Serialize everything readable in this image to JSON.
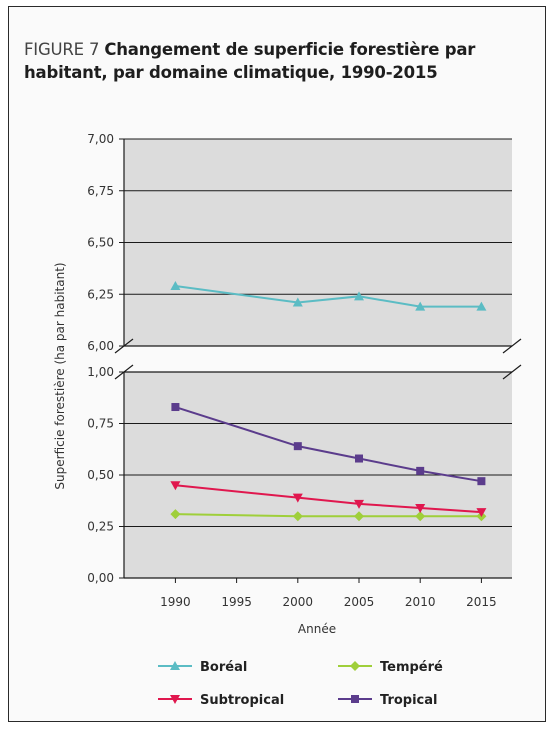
{
  "figure": {
    "label": "FIGURE 7",
    "title": "Changement de superficie forestière par habitant, par domaine climatique, 1990-2015"
  },
  "chart_data": {
    "type": "line",
    "title": "Changement de superficie forestière par habitant, par domaine climatique, 1990-2015",
    "xlabel": "Année",
    "ylabel": "Superficie forestière (ha par habitant)",
    "x": [
      1990,
      1995,
      2000,
      2005,
      2010,
      2015
    ],
    "x_ticks": [
      "1990",
      "1995",
      "2000",
      "2005",
      "2010",
      "2015"
    ],
    "axis_break": true,
    "upper_panel": {
      "ylim": [
        6.0,
        7.0
      ],
      "y_ticks": [
        "6,00",
        "6,25",
        "6,50",
        "6,75",
        "7,00"
      ],
      "tick_values": [
        6.0,
        6.25,
        6.5,
        6.75,
        7.0
      ]
    },
    "lower_panel": {
      "ylim": [
        0.0,
        1.0
      ],
      "y_ticks": [
        "0,00",
        "0,25",
        "0,50",
        "0,75",
        "1,00"
      ],
      "tick_values": [
        0.0,
        0.25,
        0.5,
        0.75,
        1.0
      ]
    },
    "grid": true,
    "legend_position": "bottom",
    "series": [
      {
        "name": "Boréal",
        "panel": "upper",
        "color": "#5bbcc4",
        "marker": "triangle-up",
        "x": [
          1990,
          2000,
          2005,
          2010,
          2015
        ],
        "values": [
          6.29,
          6.21,
          6.24,
          6.19,
          6.19
        ]
      },
      {
        "name": "Tempéré",
        "panel": "lower",
        "color": "#9fcf3a",
        "marker": "diamond",
        "x": [
          1990,
          2000,
          2005,
          2010,
          2015
        ],
        "values": [
          0.31,
          0.3,
          0.3,
          0.3,
          0.3
        ]
      },
      {
        "name": "Subtropical",
        "panel": "lower",
        "color": "#e0174e",
        "marker": "triangle-down",
        "x": [
          1990,
          2000,
          2005,
          2010,
          2015
        ],
        "values": [
          0.45,
          0.39,
          0.36,
          0.34,
          0.32
        ]
      },
      {
        "name": "Tropical",
        "panel": "lower",
        "color": "#5b3c8c",
        "marker": "square",
        "x": [
          1990,
          2000,
          2005,
          2010,
          2015
        ],
        "values": [
          0.83,
          0.64,
          0.58,
          0.52,
          0.47
        ]
      }
    ]
  }
}
